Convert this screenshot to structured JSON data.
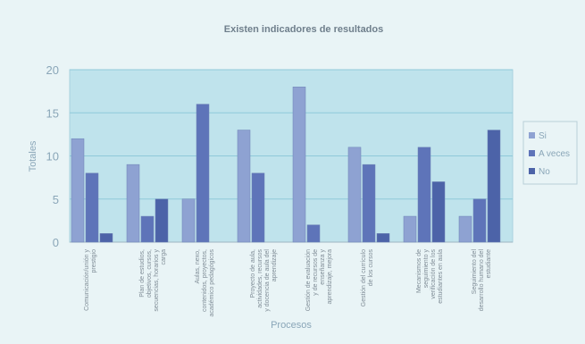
{
  "chart_data": {
    "type": "bar",
    "title": "Existen indicadores de resultados",
    "xlabel": "Procesos",
    "ylabel": "Totales",
    "ylim": [
      0,
      20
    ],
    "yticks": [
      0,
      5,
      10,
      15,
      20
    ],
    "grid": true,
    "legend_position": "right",
    "categories": [
      "Comunicación/unión y prestigio",
      "Plan de estudios, objetivos, cursos, secuencias, horarios y carga",
      "Aulas, nexo, contenidos, proyectos, académico pedagógicos",
      "Proyecto de aula, actividades, recursos y docencia de aula del aprendizaje",
      "Gestión de evaluación y de recursos de enseñanza y aprendizaje, mejora",
      "Gestión del currículo de los cursos",
      "Mecanismos de seguimiento y verificación de los estudiantes en aula",
      "Seguimiento del desarrollo humano del estudiante"
    ],
    "series": [
      {
        "name": "Si",
        "color": "#8ea2d2",
        "values": [
          12,
          9,
          5,
          13,
          18,
          11,
          3,
          3
        ]
      },
      {
        "name": "A veces",
        "color": "#5e74b9",
        "values": [
          8,
          3,
          16,
          8,
          2,
          9,
          11,
          5
        ]
      },
      {
        "name": "No",
        "color": "#4c63a8",
        "values": [
          1,
          5,
          0,
          0,
          0,
          1,
          7,
          13
        ]
      }
    ]
  }
}
